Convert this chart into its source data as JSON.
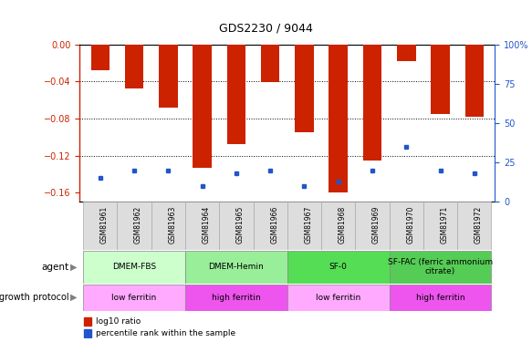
{
  "title": "GDS2230 / 9044",
  "samples": [
    "GSM81961",
    "GSM81962",
    "GSM81963",
    "GSM81964",
    "GSM81965",
    "GSM81966",
    "GSM81967",
    "GSM81968",
    "GSM81969",
    "GSM81970",
    "GSM81971",
    "GSM81972"
  ],
  "log10_ratio": [
    -0.028,
    -0.048,
    -0.068,
    -0.133,
    -0.108,
    -0.041,
    -0.095,
    -0.16,
    -0.125,
    -0.018,
    -0.075,
    -0.078
  ],
  "percentile_rank": [
    15,
    20,
    20,
    10,
    18,
    20,
    10,
    13,
    20,
    35,
    20,
    18
  ],
  "ylim_left": [
    -0.17,
    0.0
  ],
  "ylim_right": [
    0,
    100
  ],
  "yticks_left": [
    0.0,
    -0.04,
    -0.08,
    -0.12,
    -0.16
  ],
  "yticks_right": [
    0,
    25,
    50,
    75,
    100
  ],
  "bar_color": "#cc2200",
  "dot_color": "#2255cc",
  "agent_groups": [
    {
      "label": "DMEM-FBS",
      "start": 0,
      "end": 3,
      "color": "#ccffcc"
    },
    {
      "label": "DMEM-Hemin",
      "start": 3,
      "end": 6,
      "color": "#99ee99"
    },
    {
      "label": "SF-0",
      "start": 6,
      "end": 9,
      "color": "#55dd55"
    },
    {
      "label": "SF-FAC (ferric ammonium\ncitrate)",
      "start": 9,
      "end": 12,
      "color": "#55cc55"
    }
  ],
  "growth_groups": [
    {
      "label": "low ferritin",
      "start": 0,
      "end": 3,
      "color": "#ffaaff"
    },
    {
      "label": "high ferritin",
      "start": 3,
      "end": 6,
      "color": "#ee55ee"
    },
    {
      "label": "low ferritin",
      "start": 6,
      "end": 9,
      "color": "#ffaaff"
    },
    {
      "label": "high ferritin",
      "start": 9,
      "end": 12,
      "color": "#ee55ee"
    }
  ],
  "legend_bar_label": "log10 ratio",
  "legend_dot_label": "percentile rank within the sample"
}
